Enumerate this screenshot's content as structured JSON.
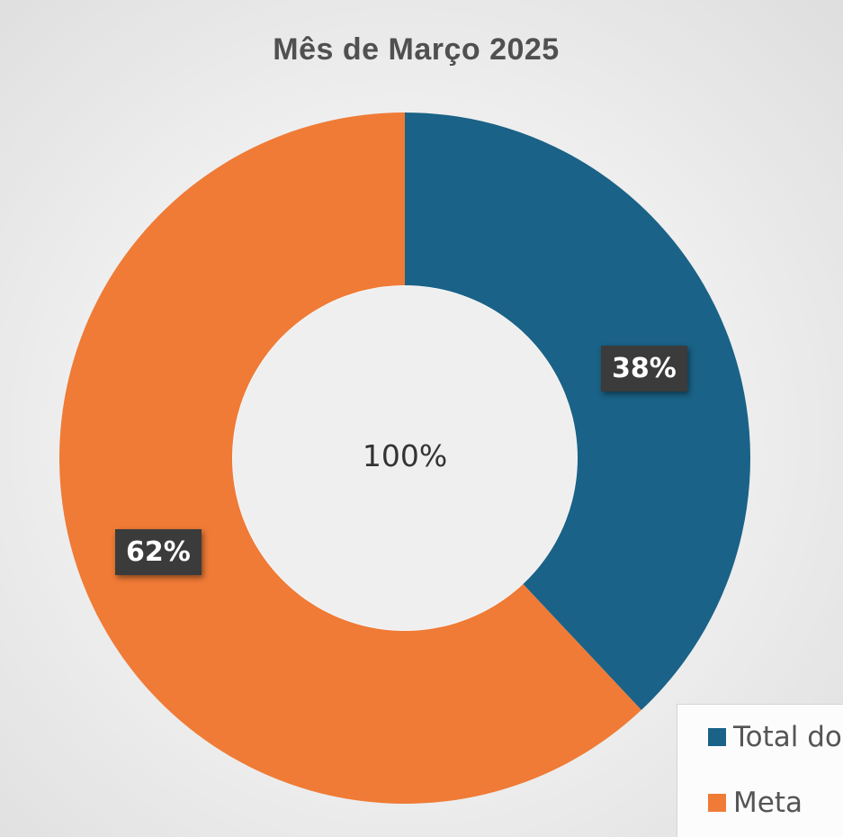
{
  "chart_data": {
    "type": "pie",
    "title": "Mês de Março 2025",
    "center_label": "100%",
    "categories": [
      "Total do",
      "Meta"
    ],
    "values": [
      38,
      62
    ],
    "data_labels": [
      "38%",
      "62%"
    ],
    "colors": [
      "#1a6287",
      "#ef7b36"
    ],
    "legend_placement": "bottom-right",
    "legend": [
      {
        "label": "Total do",
        "color": "#1a6287"
      },
      {
        "label": "Meta",
        "color": "#ef7b36"
      }
    ]
  }
}
